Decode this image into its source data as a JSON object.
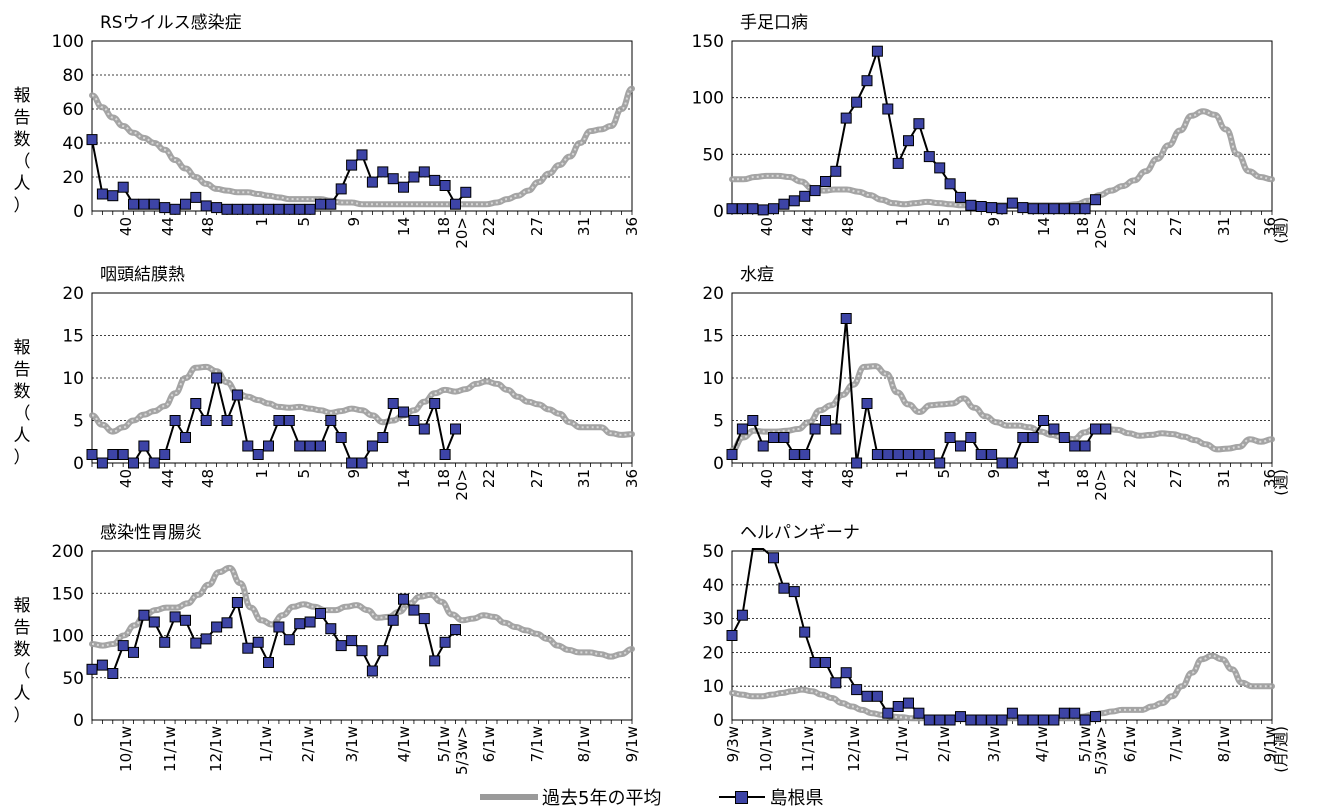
{
  "chart_data": [
    {
      "type": "line",
      "title": "RSウイルス感染症",
      "ylabel": "報告数（人）",
      "xlabel": "",
      "ylim": [
        0,
        100
      ],
      "yticks": [
        "0",
        "20",
        "40",
        "60",
        "80",
        "100"
      ],
      "xticks": [
        "40",
        "44",
        "48",
        "1",
        "5",
        "9",
        "14",
        "18",
        "20>",
        "22",
        "27",
        "31",
        "36"
      ],
      "grid": true,
      "series": [
        {
          "name": "過去5年の平均",
          "color": "#9a9a9a",
          "values": [
            68,
            61,
            55,
            50,
            46,
            43,
            40,
            36,
            30,
            25,
            20,
            16,
            13,
            12,
            11,
            11,
            10,
            9,
            8,
            7,
            7,
            7,
            7,
            6,
            5,
            5,
            4,
            4,
            4,
            4,
            4,
            4,
            4,
            4,
            4,
            4,
            4,
            4,
            4,
            5,
            7,
            9,
            12,
            17,
            22,
            27,
            32,
            40,
            47,
            48,
            50,
            60,
            72
          ]
        },
        {
          "name": "島根県",
          "color": "#3d44a6",
          "values": [
            42,
            10,
            9,
            14,
            4,
            4,
            4,
            2,
            1,
            4,
            8,
            3,
            2,
            1,
            1,
            1,
            1,
            1,
            1,
            1,
            1,
            1,
            4,
            4,
            13,
            27,
            33,
            17,
            23,
            19,
            14,
            20,
            23,
            18,
            15,
            4,
            11
          ]
        }
      ]
    },
    {
      "type": "line",
      "title": "手足口病",
      "ylabel": "",
      "xlabel": "(週)",
      "ylim": [
        0,
        150
      ],
      "yticks": [
        "0",
        "50",
        "100",
        "150"
      ],
      "xticks": [
        "40",
        "44",
        "48",
        "1",
        "5",
        "9",
        "14",
        "18",
        "20>",
        "22",
        "27",
        "31",
        "36"
      ],
      "grid": true,
      "series": [
        {
          "name": "過去5年の平均",
          "color": "#9a9a9a",
          "values": [
            28,
            28,
            30,
            31,
            31,
            30,
            26,
            20,
            18,
            19,
            19,
            17,
            14,
            10,
            7,
            6,
            7,
            8,
            7,
            6,
            5,
            5,
            5,
            5,
            5,
            5,
            5,
            5,
            5,
            5,
            6,
            9,
            14,
            18,
            22,
            27,
            35,
            46,
            58,
            71,
            84,
            88,
            85,
            72,
            50,
            35,
            30,
            28
          ]
        },
        {
          "name": "島根県",
          "color": "#3d44a6",
          "values": [
            2,
            2,
            2,
            1,
            2,
            6,
            9,
            13,
            18,
            26,
            35,
            82,
            96,
            115,
            141,
            90,
            42,
            62,
            77,
            48,
            38,
            24,
            12,
            5,
            4,
            3,
            2,
            7,
            3,
            2,
            2,
            2,
            2,
            2,
            2,
            10
          ]
        }
      ]
    },
    {
      "type": "line",
      "title": "咽頭結膜熱",
      "ylabel": "報告数（人）",
      "xlabel": "",
      "ylim": [
        0,
        20
      ],
      "yticks": [
        "0",
        "5",
        "10",
        "15",
        "20"
      ],
      "xticks": [
        "40",
        "44",
        "48",
        "1",
        "5",
        "9",
        "14",
        "18",
        "20>",
        "22",
        "27",
        "31",
        "36"
      ],
      "grid": true,
      "series": [
        {
          "name": "過去5年の平均",
          "color": "#9a9a9a",
          "values": [
            5.6,
            4.5,
            3.7,
            4.2,
            5.0,
            5.7,
            6.1,
            6.7,
            8.2,
            10.0,
            11.2,
            11.3,
            10.8,
            9.5,
            8.2,
            7.8,
            7.4,
            7.0,
            6.6,
            6.5,
            6.6,
            6.4,
            6.2,
            5.9,
            6.1,
            6.4,
            6.2,
            5.6,
            4.8,
            5.0,
            5.6,
            6.2,
            7.2,
            8.2,
            8.6,
            8.4,
            8.7,
            9.3,
            9.6,
            9.3,
            8.6,
            7.8,
            7.2,
            6.9,
            6.3,
            5.8,
            4.8,
            4.2,
            4.2,
            4.2,
            3.5,
            3.3,
            3.4
          ]
        },
        {
          "name": "島根県",
          "color": "#3d44a6",
          "values": [
            1,
            0,
            1,
            1,
            0,
            2,
            0,
            1,
            5,
            3,
            7,
            5,
            10,
            5,
            8,
            2,
            1,
            2,
            5,
            5,
            2,
            2,
            2,
            5,
            3,
            0,
            0,
            2,
            3,
            7,
            6,
            5,
            4,
            7,
            1,
            4
          ]
        }
      ]
    },
    {
      "type": "line",
      "title": "水痘",
      "ylabel": "",
      "xlabel": "(週)",
      "ylim": [
        0,
        20
      ],
      "yticks": [
        "0",
        "5",
        "10",
        "15",
        "20"
      ],
      "xticks": [
        "40",
        "44",
        "48",
        "1",
        "5",
        "9",
        "14",
        "18",
        "20>",
        "22",
        "27",
        "31",
        "36"
      ],
      "grid": true,
      "series": [
        {
          "name": "過去5年の平均",
          "color": "#9a9a9a",
          "values": [
            1.5,
            3.0,
            3.8,
            3.7,
            3.7,
            3.8,
            4.0,
            4.8,
            6.2,
            6.8,
            8.0,
            9.2,
            11.3,
            11.4,
            10.5,
            8.3,
            6.9,
            6.0,
            6.8,
            6.9,
            7.0,
            7.6,
            6.5,
            5.5,
            4.8,
            4.4,
            4.4,
            4.2,
            3.7,
            3.3,
            3.0,
            2.8,
            3.6,
            4.1,
            4.0,
            3.9,
            3.5,
            3.2,
            3.3,
            3.5,
            3.4,
            3.1,
            2.7,
            2.2,
            1.6,
            1.7,
            1.9,
            2.8,
            2.5,
            2.8
          ]
        },
        {
          "name": "島根県",
          "color": "#3d44a6",
          "values": [
            1,
            4,
            5,
            2,
            3,
            3,
            1,
            1,
            4,
            5,
            4,
            17,
            0,
            7,
            1,
            1,
            1,
            1,
            1,
            1,
            0,
            3,
            2,
            3,
            1,
            1,
            0,
            0,
            3,
            3,
            5,
            4,
            3,
            2,
            2,
            4,
            4
          ]
        }
      ]
    },
    {
      "type": "line",
      "title": "感染性胃腸炎",
      "ylabel": "報告数（人）",
      "xlabel": "",
      "ylim": [
        0,
        200
      ],
      "yticks": [
        "0",
        "50",
        "100",
        "150",
        "200"
      ],
      "xticks": [
        "10/1w",
        "11/1w",
        "12/1w",
        "1/1w",
        "2/1w",
        "3/1w",
        "4/1w",
        "5/1w",
        "5/3w>",
        "6/1w",
        "7/1w",
        "8/1w",
        "9/1w"
      ],
      "grid": true,
      "series": [
        {
          "name": "過去5年の平均",
          "color": "#9a9a9a",
          "values": [
            90,
            88,
            90,
            100,
            112,
            124,
            130,
            133,
            133,
            138,
            148,
            160,
            175,
            180,
            162,
            133,
            118,
            113,
            124,
            134,
            137,
            134,
            130,
            130,
            134,
            136,
            130,
            121,
            122,
            128,
            138,
            146,
            148,
            140,
            125,
            118,
            120,
            124,
            122,
            115,
            110,
            106,
            102,
            96,
            88,
            83,
            80,
            80,
            78,
            75,
            78,
            84
          ]
        },
        {
          "name": "島根県",
          "color": "#3d44a6",
          "values": [
            60,
            65,
            55,
            88,
            80,
            124,
            116,
            92,
            122,
            118,
            91,
            96,
            110,
            115,
            139,
            85,
            92,
            68,
            110,
            95,
            114,
            116,
            126,
            108,
            88,
            94,
            82,
            58,
            82,
            118,
            143,
            130,
            120,
            70,
            92,
            107
          ]
        }
      ]
    },
    {
      "type": "line",
      "title": "ヘルパンギーナ",
      "ylabel": "",
      "xlabel": "(月/週)",
      "ylim": [
        0,
        50
      ],
      "yticks": [
        "0",
        "10",
        "20",
        "30",
        "40",
        "50"
      ],
      "xticks": [
        "9/3w",
        "10/1w",
        "11/1w",
        "12/1w",
        "1/1w",
        "2/1w",
        "3/1w",
        "4/1w",
        "5/1w",
        "5/3w>",
        "6/1w",
        "7/1w",
        "8/1w",
        "9/1w"
      ],
      "grid": true,
      "series": [
        {
          "name": "過去5年の平均",
          "color": "#9a9a9a",
          "values": [
            8,
            7.5,
            7,
            7,
            7.5,
            8,
            8.5,
            9,
            8.5,
            7.5,
            6.5,
            5,
            4,
            3,
            2,
            1.5,
            1,
            0.8,
            0.5,
            0.5,
            0.5,
            0.5,
            0.5,
            0.5,
            0.5,
            0.5,
            0.5,
            0.5,
            0.5,
            0.5,
            0.5,
            0.5,
            0.5,
            0.5,
            0.5,
            1,
            1.5,
            2,
            2.5,
            3,
            3,
            3,
            4,
            5,
            7,
            10,
            14,
            18,
            19,
            18,
            15,
            11,
            10,
            10,
            10
          ]
        },
        {
          "name": "島根県",
          "color": "#3d44a6",
          "values": [
            25,
            31,
            58,
            55,
            48,
            39,
            38,
            26,
            17,
            17,
            11,
            14,
            9,
            7,
            7,
            2,
            4,
            5,
            2,
            0,
            0,
            0,
            1,
            0,
            0,
            0,
            0,
            2,
            0,
            0,
            0,
            0,
            2,
            2,
            0,
            1
          ]
        }
      ]
    }
  ],
  "legend": {
    "average_label": "過去5年の平均",
    "shimane_label": "島根県"
  }
}
